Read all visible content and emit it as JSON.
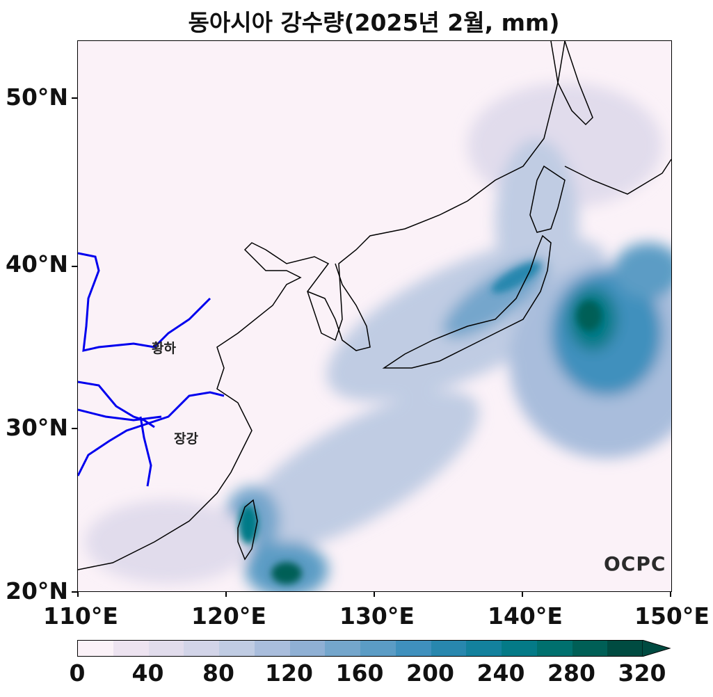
{
  "map": {
    "title": "동아시아 강수량(2025년 2월, mm)",
    "extent": {
      "lon": [
        110,
        150
      ],
      "lat": [
        20,
        53.5
      ]
    },
    "lat_ticks": [
      {
        "value": 50,
        "label": "50°N"
      },
      {
        "value": 40,
        "label": "40°N"
      },
      {
        "value": 30,
        "label": "30°N"
      },
      {
        "value": 20,
        "label": "20°N"
      }
    ],
    "lon_ticks": [
      {
        "value": 110,
        "label": "110°E"
      },
      {
        "value": 120,
        "label": "120°E"
      },
      {
        "value": 130,
        "label": "130°E"
      },
      {
        "value": 140,
        "label": "140°E"
      },
      {
        "value": 150,
        "label": "150°E"
      }
    ],
    "rivers": [
      {
        "name": "황하",
        "label_lon": 115.0,
        "label_lat": 34.7
      },
      {
        "name": "장강",
        "label_lon": 116.2,
        "label_lat": 29.2
      }
    ],
    "logo_text": "OCPC"
  },
  "colorbar": {
    "levels": [
      0,
      20,
      40,
      60,
      80,
      100,
      120,
      140,
      160,
      180,
      200,
      220,
      240,
      260,
      280,
      300,
      320
    ],
    "tick_labels": [
      "0",
      "40",
      "80",
      "120",
      "160",
      "200",
      "240",
      "280",
      "320"
    ],
    "tick_values": [
      0,
      40,
      80,
      120,
      160,
      200,
      240,
      280,
      320
    ],
    "colors": [
      "#fbf2f8",
      "#ede3f0",
      "#e1dcec",
      "#d2d4e8",
      "#c0cce3",
      "#a9bddc",
      "#8fb0d4",
      "#74a6cc",
      "#5b9cc5",
      "#3f90bd",
      "#2887ae",
      "#13819d",
      "#047a87",
      "#00706e",
      "#005f56",
      "#004b41"
    ],
    "extend": "max",
    "units": "mm"
  }
}
